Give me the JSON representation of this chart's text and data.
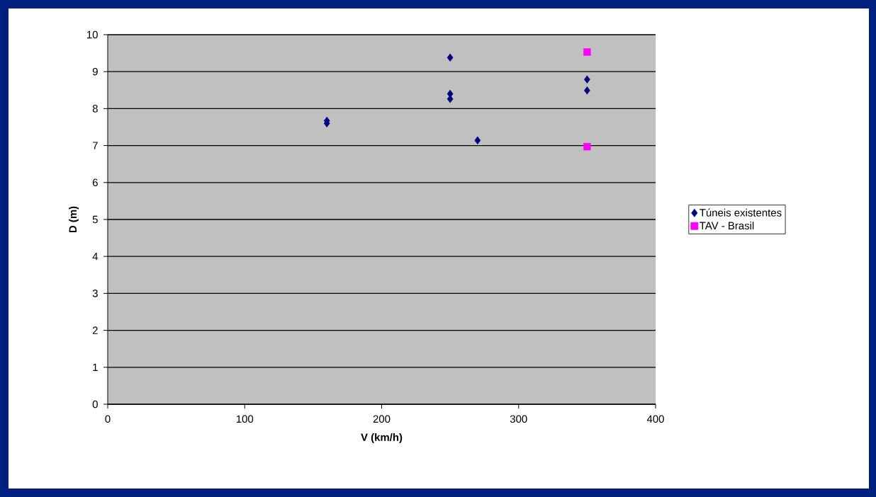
{
  "chart_data": {
    "type": "scatter",
    "xlabel": "V (km/h)",
    "ylabel": "D (m)",
    "xlim": [
      0,
      400
    ],
    "xticks": [
      0,
      100,
      200,
      300,
      400
    ],
    "ylim": [
      0,
      10
    ],
    "yticks": [
      0,
      1,
      2,
      3,
      4,
      5,
      6,
      7,
      8,
      9,
      10
    ],
    "grid": "y",
    "legend": "right",
    "series": [
      {
        "name": "Túneis existentes",
        "color": "#000080",
        "marker": "diamond",
        "x": [
          160,
          160,
          250,
          250,
          250,
          270,
          350,
          350
        ],
        "values": [
          7.67,
          7.6,
          9.38,
          8.4,
          8.26,
          7.14,
          8.79,
          8.49
        ]
      },
      {
        "name": "TAV - Brasil",
        "color": "#ff00ff",
        "marker": "square",
        "x": [
          350,
          350
        ],
        "values": [
          9.53,
          6.97
        ]
      }
    ]
  }
}
